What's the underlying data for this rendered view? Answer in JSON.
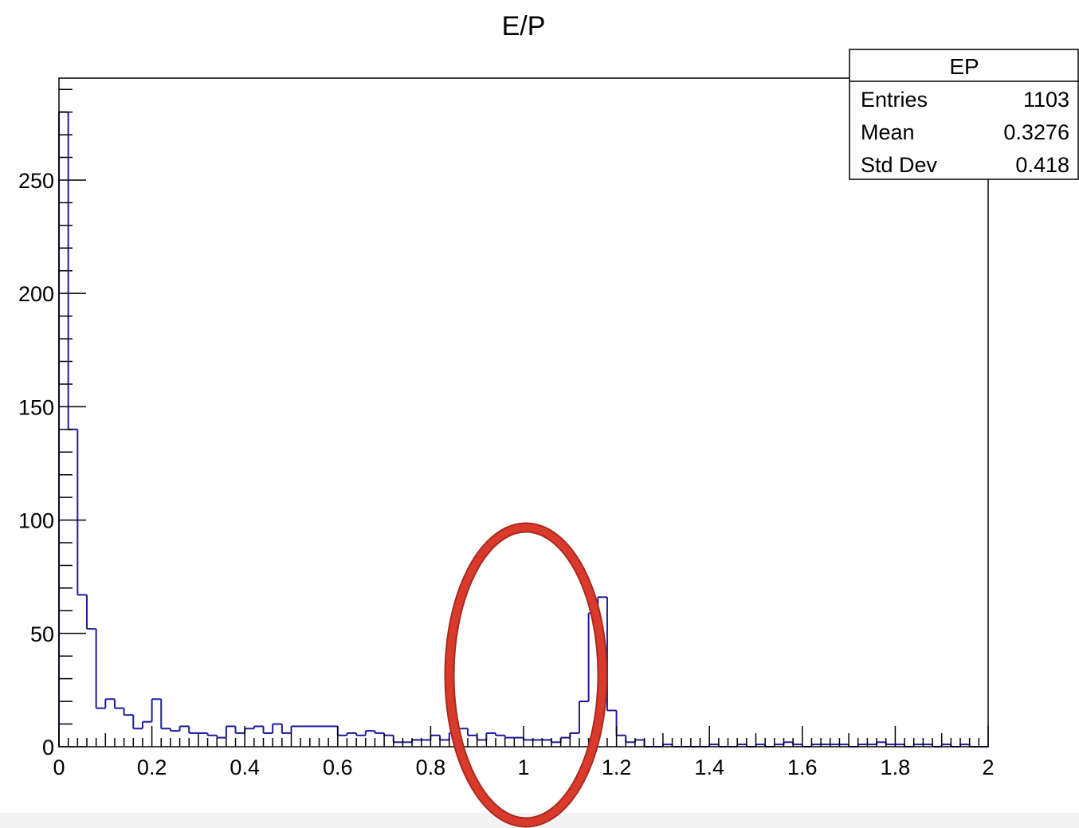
{
  "chart_data": {
    "type": "bar",
    "title": "E/P",
    "xlabel": "",
    "ylabel": "",
    "xlim": [
      0,
      2
    ],
    "ylim": [
      0,
      295
    ],
    "x_ticks": [
      "0",
      "0.2",
      "0.4",
      "0.6",
      "0.8",
      "1",
      "1.2",
      "1.4",
      "1.6",
      "1.8",
      "2"
    ],
    "y_ticks": [
      "0",
      "50",
      "100",
      "150",
      "200",
      "250"
    ],
    "bin_width": 0.02,
    "series": [
      {
        "color": "#1c1c9e",
        "values": [
          280,
          140,
          67,
          52,
          17,
          21,
          17,
          14,
          8,
          11,
          21,
          8,
          7,
          9,
          6,
          6,
          5,
          4,
          9,
          6,
          8,
          9,
          6,
          10,
          6,
          9,
          9,
          9,
          9,
          9,
          5,
          6,
          5,
          7,
          6,
          5,
          2,
          2,
          3,
          3,
          5,
          3,
          6,
          8,
          5,
          3,
          6,
          5,
          4,
          4,
          3,
          3,
          3,
          2,
          4,
          6,
          20,
          59,
          66,
          16,
          5,
          2,
          3,
          0,
          0,
          1,
          0,
          0,
          0,
          0,
          1,
          0,
          0,
          1,
          0,
          1,
          0,
          1,
          2,
          1,
          0,
          1,
          1,
          1,
          1,
          0,
          1,
          1,
          2,
          1,
          1,
          0,
          1,
          1,
          0,
          1,
          0,
          1,
          0,
          0
        ]
      }
    ],
    "stats_box": {
      "name": "EP",
      "rows": [
        {
          "label": "Entries",
          "value": "1103"
        },
        {
          "label": "Mean",
          "value": "0.3276"
        },
        {
          "label": "Std Dev",
          "value": "0.418"
        }
      ]
    },
    "annotation": {
      "shape": "ellipse",
      "around_x": 1.0,
      "color": "#d93a2b"
    },
    "grid": false,
    "legend": "top-right"
  }
}
